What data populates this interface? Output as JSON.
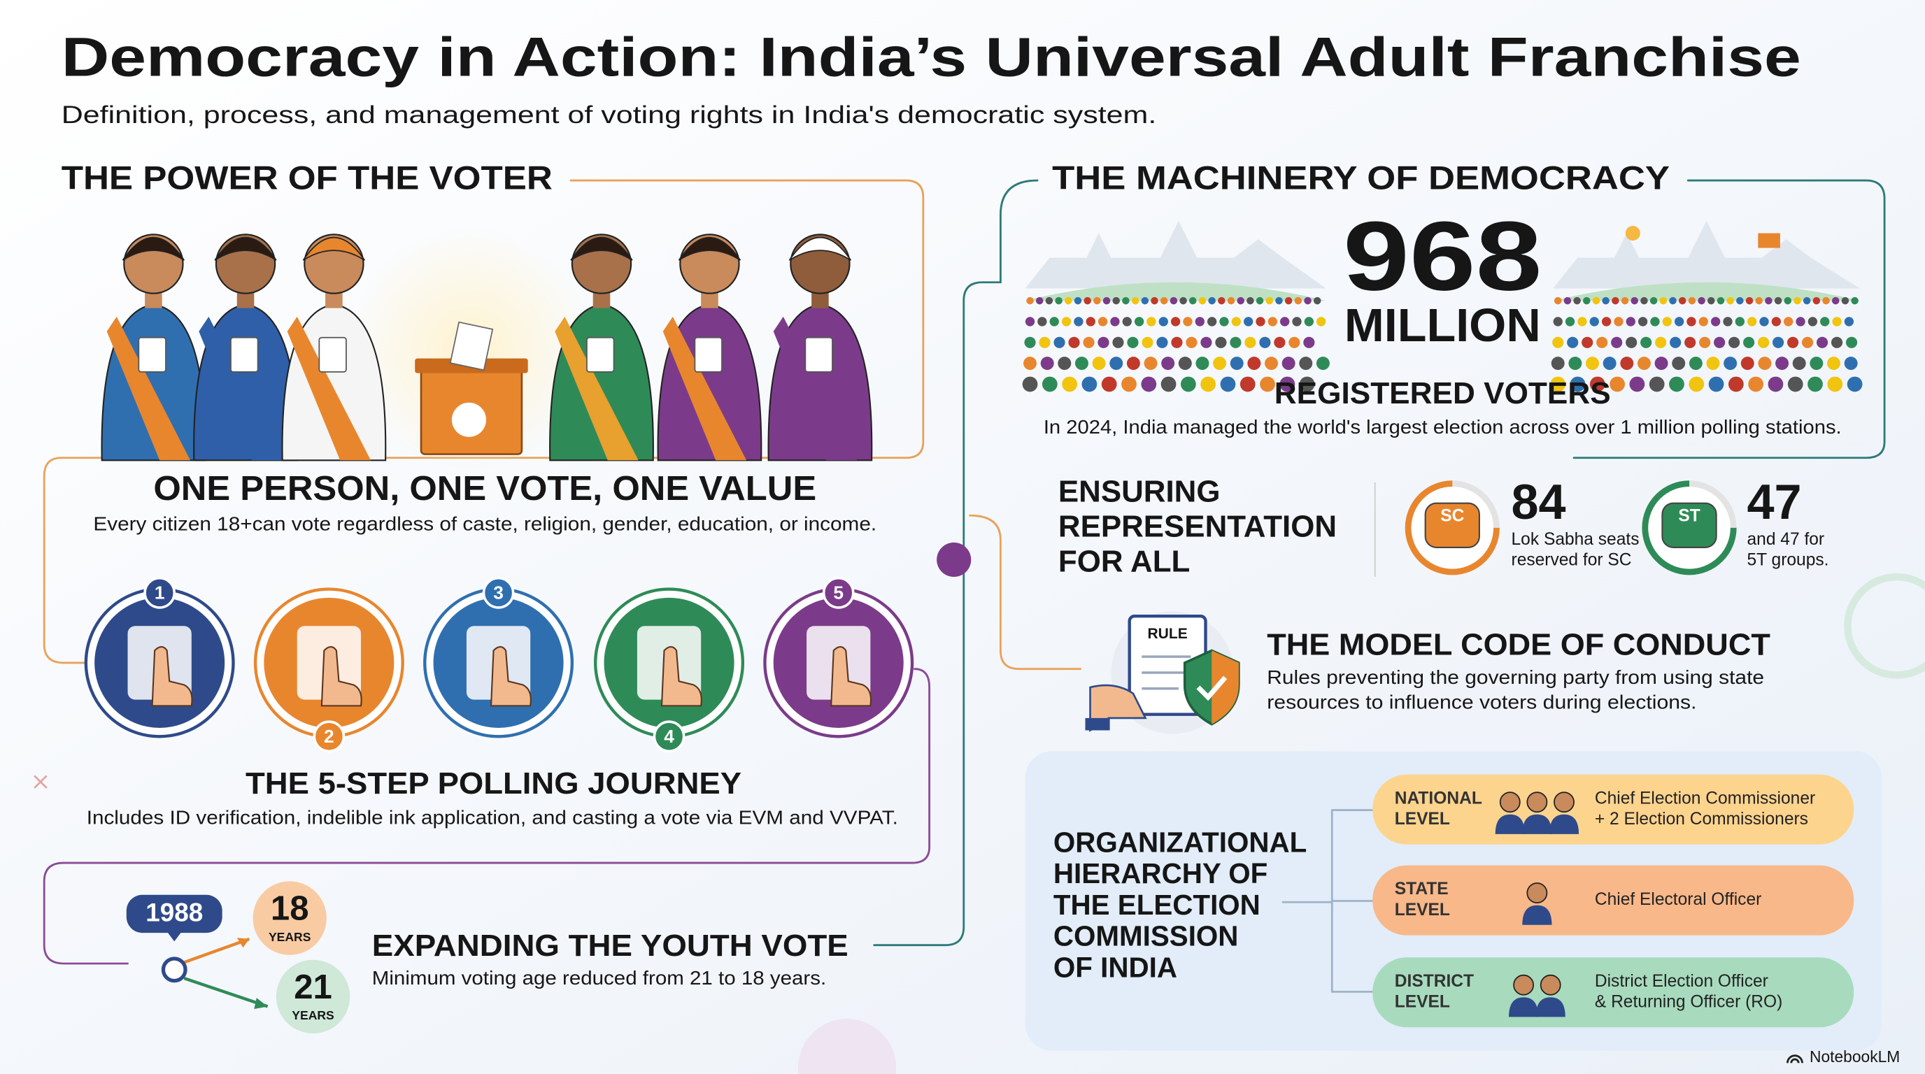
{
  "header": {
    "title": "Democracy in Action: India’s Universal Adult Franchise",
    "subtitle": "Definition, process, and management of voting rights in India's democratic system."
  },
  "voter_power": {
    "heading": "THE POWER OF THE VOTER",
    "principle_title": "ONE PERSON, ONE VOTE, ONE VALUE",
    "principle_text": "Every citizen 18+can vote regardless of caste, religion, gender, education, or income.",
    "journey_steps": [
      "1",
      "2",
      "3",
      "4",
      "5"
    ],
    "journey_title": "THE 5-STEP POLLING JOURNEY",
    "journey_text": "Includes ID verification, indelible ink application, and casting a vote via EVM and VVPAT."
  },
  "youth_vote": {
    "year": "1988",
    "new_age": "18",
    "new_age_unit": "YEARS",
    "old_age": "21",
    "old_age_unit": "YEARS",
    "title": "EXPANDING THE YOUTH VOTE",
    "text": "Minimum voting age reduced from 21 to 18 years."
  },
  "machinery": {
    "heading": "THE MACHINERY OF DEMOCRACY",
    "voters_number": "968",
    "voters_unit": "MILLION",
    "voters_label": "REGISTERED VOTERS",
    "note": "In 2024, India managed the world's largest election across over 1 million polling stations."
  },
  "representation": {
    "title_lines": [
      "ENSURING",
      "REPRESENTATION",
      "FOR ALL"
    ],
    "reservations": [
      {
        "badge": "SC",
        "number": "84",
        "text_lines": [
          "Lok Sabha seats",
          "reserved for SC"
        ]
      },
      {
        "badge": "ST",
        "number": "47",
        "text_lines": [
          "and 47 for",
          "5T groups."
        ]
      }
    ]
  },
  "conduct": {
    "badge": "RULE",
    "title": "THE MODEL CODE OF CONDUCT",
    "text_lines": [
      "Rules preventing the governing party from using state",
      "resources to influence voters during elections."
    ]
  },
  "hierarchy": {
    "title_lines": [
      "ORGANIZATIONAL",
      "HIERARCHY OF",
      "THE ELECTION",
      "COMMISSION",
      "OF INDIA"
    ],
    "levels": [
      {
        "level_lines": [
          "NATIONAL",
          "LEVEL"
        ],
        "role_lines": [
          "Chief Election Commissioner",
          "+ 2 Election Commissioners"
        ]
      },
      {
        "level_lines": [
          "STATE",
          "LEVEL"
        ],
        "role_lines": [
          "Chief Electoral Officer"
        ]
      },
      {
        "level_lines": [
          "DISTRICT",
          "LEVEL"
        ],
        "role_lines": [
          "District Election Officer",
          "& Returning Officer (RO)"
        ]
      }
    ]
  },
  "footer": {
    "brand": "NotebookLM"
  }
}
